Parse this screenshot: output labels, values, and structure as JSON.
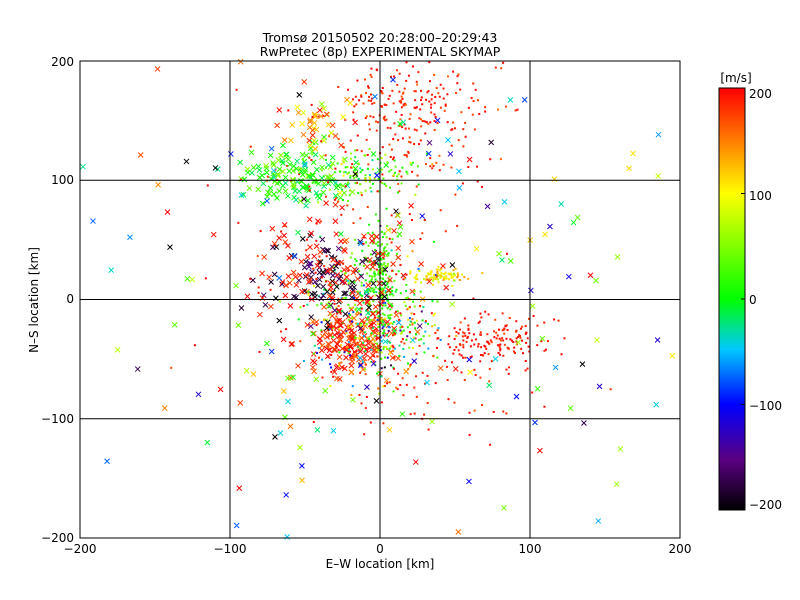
{
  "chart_data": {
    "type": "scatter",
    "title": "Tromsø 20150502 20:28:00–20:29:43",
    "subtitle": "RwPretec (8p) EXPERIMENTAL SKYMAP",
    "xlabel": "E–W location [km]",
    "ylabel": "N–S location [km]",
    "xlim": [
      -200,
      200
    ],
    "ylim": [
      -200,
      200
    ],
    "x_ticks": [
      -200,
      -100,
      0,
      100,
      200
    ],
    "y_ticks": [
      -200,
      -100,
      0,
      100,
      200
    ],
    "x_tick_labels": [
      "−200",
      "−100",
      "0",
      "100",
      "200"
    ],
    "y_tick_labels": [
      "200",
      "100",
      "0",
      "−100",
      "−200"
    ],
    "grid": true,
    "colorbar": {
      "unit": "[m/s]",
      "range": [
        -200,
        200
      ],
      "ticks": [
        200,
        100,
        0,
        -100,
        -200
      ],
      "tick_labels": [
        "200",
        "100",
        "0",
        "−100",
        "−200"
      ],
      "colormap": "black-purple-blue-cyan-green-yellow-red"
    },
    "marker_types": [
      "dot",
      "cross"
    ],
    "clusters": [
      {
        "x": 20,
        "y": 160,
        "sx": 30,
        "sy": 28,
        "count": 260,
        "value": 190,
        "vspread": 15,
        "marker": "dot"
      },
      {
        "x": 80,
        "y": -35,
        "sx": 20,
        "sy": 10,
        "count": 140,
        "value": 195,
        "vspread": 10,
        "marker": "dot"
      },
      {
        "x": -20,
        "y": -30,
        "sx": 15,
        "sy": 15,
        "count": 170,
        "value": 185,
        "vspread": 20,
        "marker": "cross"
      },
      {
        "x": -5,
        "y": -25,
        "sx": 20,
        "sy": 22,
        "count": 300,
        "value": 40,
        "vspread": 90,
        "marker": "dot"
      },
      {
        "x": 0,
        "y": 20,
        "sx": 4,
        "sy": 22,
        "count": 160,
        "value": 25,
        "vspread": 15,
        "marker": "dot"
      },
      {
        "x": -5,
        "y": 15,
        "sx": 15,
        "sy": 18,
        "count": 110,
        "value": 20,
        "vspread": 25,
        "marker": "dot"
      },
      {
        "x": -55,
        "y": 105,
        "sx": 18,
        "sy": 12,
        "count": 140,
        "value": 10,
        "vspread": 30,
        "marker": "cross"
      },
      {
        "x": -10,
        "y": 105,
        "sx": 18,
        "sy": 10,
        "count": 120,
        "value": 35,
        "vspread": 35,
        "marker": "dot"
      },
      {
        "x": -45,
        "y": 145,
        "sx": 12,
        "sy": 10,
        "count": 40,
        "value": 130,
        "vspread": 40,
        "marker": "cross"
      },
      {
        "x": 40,
        "y": 20,
        "sx": 10,
        "sy": 3,
        "count": 90,
        "value": 105,
        "vspread": 20,
        "marker": "dot"
      },
      {
        "x": -35,
        "y": 20,
        "sx": 20,
        "sy": 18,
        "count": 90,
        "value": -180,
        "vspread": 15,
        "marker": "cross"
      },
      {
        "x": -30,
        "y": 25,
        "sx": 30,
        "sy": 30,
        "count": 110,
        "value": 190,
        "vspread": 10,
        "marker": "cross"
      },
      {
        "x": 30,
        "y": -60,
        "sx": 40,
        "sy": 30,
        "count": 110,
        "value": 190,
        "vspread": 10,
        "marker": "dot"
      },
      {
        "x": -20,
        "y": 50,
        "sx": 40,
        "sy": 60,
        "count": 130,
        "value": 190,
        "vspread": 15,
        "marker": "dot"
      },
      {
        "x": 0,
        "y": 0,
        "sx": 110,
        "sy": 110,
        "count": 200,
        "value": 0,
        "vspread": 140,
        "marker": "cross"
      }
    ]
  }
}
